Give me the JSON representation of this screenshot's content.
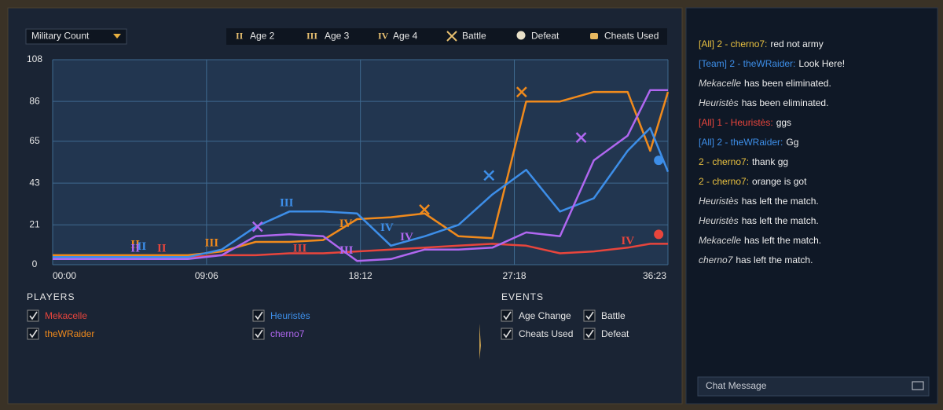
{
  "dropdown": {
    "label": "Military Count"
  },
  "legend": [
    {
      "symbol": "II",
      "label": "Age 2"
    },
    {
      "symbol": "III",
      "label": "Age 3"
    },
    {
      "symbol": "IV",
      "label": "Age 4"
    },
    {
      "label": "Battle"
    },
    {
      "label": "Defeat"
    },
    {
      "label": "Cheats Used"
    }
  ],
  "chart_data": {
    "type": "line",
    "x": [
      0,
      120,
      240,
      360,
      480,
      600,
      720,
      840,
      960,
      1080,
      1200,
      1320,
      1440,
      1560,
      1680,
      1800,
      1920,
      2040,
      2120,
      2183
    ],
    "xlim": [
      0,
      2183
    ],
    "xticks": [
      {
        "value": 0,
        "label": "00:00"
      },
      {
        "value": 546,
        "label": "09:06"
      },
      {
        "value": 1092,
        "label": "18:12"
      },
      {
        "value": 1638,
        "label": "27:18"
      },
      {
        "value": 2183,
        "label": "36:23"
      }
    ],
    "ylim": [
      0,
      108
    ],
    "yticks": [
      0,
      21,
      43,
      65,
      86,
      108
    ],
    "grid": true,
    "series": [
      {
        "name": "Mekacelle",
        "color": "#e8453c",
        "values": [
          3,
          3,
          3,
          3,
          4,
          5,
          5,
          6,
          6,
          7,
          8,
          9,
          10,
          11,
          10,
          6,
          7,
          9,
          11,
          11
        ]
      },
      {
        "name": "theWRaider",
        "color": "#f08a1c",
        "values": [
          5,
          5,
          5,
          5,
          5,
          7,
          12,
          12,
          13,
          24,
          25,
          27,
          15,
          14,
          86,
          86,
          91,
          91,
          60,
          91
        ]
      },
      {
        "name": "Heuristès",
        "color": "#3d8ee8",
        "values": [
          4,
          4,
          4,
          4,
          4,
          8,
          20,
          28,
          28,
          27,
          10,
          15,
          21,
          37,
          50,
          28,
          35,
          60,
          72,
          49
        ]
      },
      {
        "name": "cherno7",
        "color": "#b067f0",
        "values": [
          3,
          3,
          3,
          3,
          3,
          5,
          15,
          16,
          15,
          2,
          3,
          8,
          8,
          9,
          17,
          15,
          55,
          68,
          92,
          92
        ]
      }
    ],
    "markers": [
      {
        "kind": "age",
        "label": "II",
        "x": 387,
        "y": 7,
        "color": "#e8453c"
      },
      {
        "kind": "age",
        "label": "III",
        "x": 877,
        "y": 7,
        "color": "#e8453c"
      },
      {
        "kind": "age",
        "label": "IV",
        "x": 2040,
        "y": 11,
        "color": "#e8453c"
      },
      {
        "kind": "defeat",
        "x": 2150,
        "y": 16,
        "color": "#e8453c"
      },
      {
        "kind": "age",
        "label": "II",
        "x": 293,
        "y": 9,
        "color": "#f08a1c"
      },
      {
        "kind": "age",
        "label": "III",
        "x": 564,
        "y": 10,
        "color": "#f08a1c"
      },
      {
        "kind": "age",
        "label": "IV",
        "x": 1040,
        "y": 20,
        "color": "#f08a1c"
      },
      {
        "kind": "battle",
        "x": 1319,
        "y": 29,
        "color": "#f08a1c"
      },
      {
        "kind": "battle",
        "x": 1664,
        "y": 91,
        "color": "#f08a1c"
      },
      {
        "kind": "age",
        "label": "II",
        "x": 316,
        "y": 8,
        "color": "#3d8ee8"
      },
      {
        "kind": "age",
        "label": "III",
        "x": 830,
        "y": 31,
        "color": "#3d8ee8"
      },
      {
        "kind": "age",
        "label": "IV",
        "x": 1186,
        "y": 18,
        "color": "#3d8ee8"
      },
      {
        "kind": "battle",
        "x": 1548,
        "y": 47,
        "color": "#3d8ee8"
      },
      {
        "kind": "defeat",
        "x": 2150,
        "y": 55,
        "color": "#3d8ee8"
      },
      {
        "kind": "age",
        "label": "II",
        "x": 293,
        "y": 7,
        "color": "#b067f0"
      },
      {
        "kind": "age",
        "label": "III",
        "x": 1042,
        "y": 6,
        "color": "#b067f0"
      },
      {
        "kind": "age",
        "label": "IV",
        "x": 1256,
        "y": 13,
        "color": "#b067f0"
      },
      {
        "kind": "battle",
        "x": 727,
        "y": 20,
        "color": "#b067f0"
      },
      {
        "kind": "battle",
        "x": 1875,
        "y": 67,
        "color": "#b067f0"
      }
    ]
  },
  "players": {
    "title": "PLAYERS",
    "items": [
      "Mekacelle",
      "Heuristès",
      "theWRaider",
      "cherno7"
    ]
  },
  "events": {
    "title": "EVENTS",
    "items": [
      "Age Change",
      "Battle",
      "Cheats Used",
      "Defeat"
    ]
  },
  "chat": {
    "messages": [
      {
        "prefix": "[All] 2 - cherno7:",
        "body": "red not army",
        "color": "#e8c040"
      },
      {
        "prefix": "[Team] 2 - theWRaider:",
        "body": "Look Here!",
        "color": "#3d8ee8"
      },
      {
        "prefix": "Mekacelle",
        "body": "has been eliminated.",
        "color": "#d8d8d8"
      },
      {
        "prefix": "Heuristès",
        "body": "has been eliminated.",
        "color": "#d8d8d8"
      },
      {
        "prefix": "[All] 1 - Heuristès:",
        "body": "ggs",
        "color": "#e8453c"
      },
      {
        "prefix": "[All] 2 - theWRaider:",
        "body": "Gg",
        "color": "#3d8ee8"
      },
      {
        "prefix": "2 - cherno7:",
        "body": "thank gg",
        "color": "#e8c040"
      },
      {
        "prefix": "2 - cherno7:",
        "body": "orange is got",
        "color": "#e8c040"
      },
      {
        "prefix": "Heuristès",
        "body": "has left the match.",
        "color": "#d8d8d8"
      },
      {
        "prefix": "Heuristès",
        "body": "has left the match.",
        "color": "#d8d8d8"
      },
      {
        "prefix": "Mekacelle",
        "body": "has left the match.",
        "color": "#d8d8d8"
      },
      {
        "prefix": "cherno7",
        "body": "has left the match.",
        "color": "#d8d8d8"
      }
    ],
    "input_placeholder": "Chat Message"
  }
}
